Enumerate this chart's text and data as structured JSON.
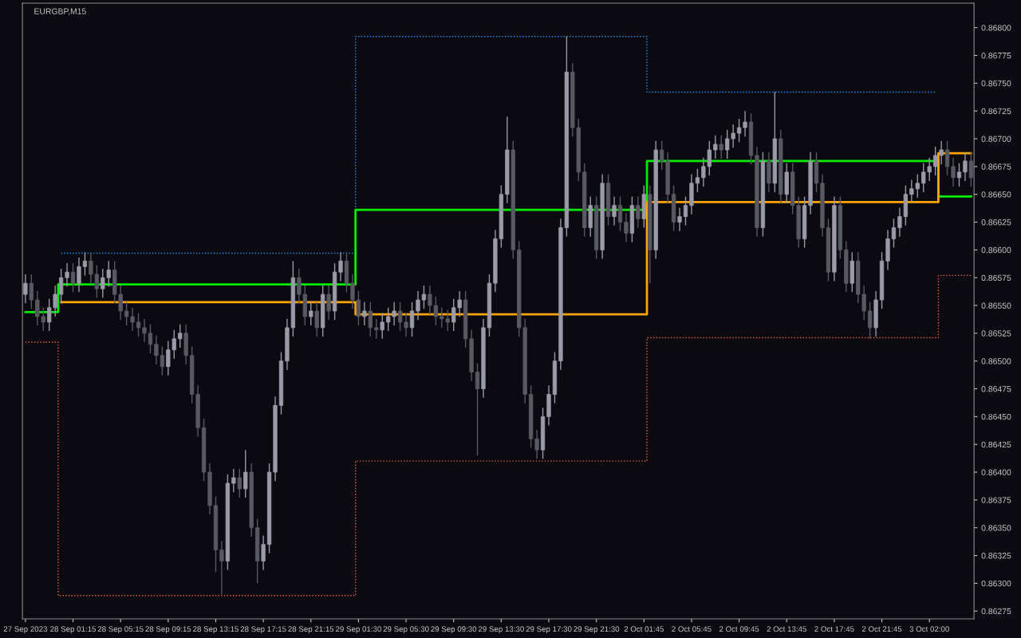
{
  "chart_data": {
    "type": "candlestick",
    "title": "EURGBP,M15",
    "categories": [
      "27 Sep 2023",
      null,
      null,
      null,
      null,
      null,
      null,
      null,
      "28 Sep 01:15",
      null,
      null,
      null,
      null,
      null,
      null,
      null,
      "28 Sep 05:15",
      null,
      null,
      null,
      null,
      null,
      null,
      null,
      "28 Sep 09:15",
      null,
      null,
      null,
      null,
      null,
      null,
      null,
      "28 Sep 13:15",
      null,
      null,
      null,
      null,
      null,
      null,
      null,
      "28 Sep 17:15",
      null,
      null,
      null,
      null,
      null,
      null,
      null,
      "28 Sep 21:15",
      null,
      null,
      null,
      null,
      null,
      null,
      null,
      "29 Sep 01:30",
      null,
      null,
      null,
      null,
      null,
      null,
      null,
      "29 Sep 05:30",
      null,
      null,
      null,
      null,
      null,
      null,
      null,
      "29 Sep 09:30",
      null,
      null,
      null,
      null,
      null,
      null,
      null,
      "29 Sep 13:30",
      null,
      null,
      null,
      null,
      null,
      null,
      null,
      "29 Sep 17:30",
      null,
      null,
      null,
      null,
      null,
      null,
      null,
      "29 Sep 21:30",
      null,
      null,
      null,
      null,
      null,
      null,
      null,
      "2 Oct 01:45",
      null,
      null,
      null,
      null,
      null,
      null,
      null,
      "2 Oct 05:45",
      null,
      null,
      null,
      null,
      null,
      null,
      null,
      "2 Oct 09:45",
      null,
      null,
      null,
      null,
      null,
      null,
      null,
      "2 Oct 13:45",
      null,
      null,
      null,
      null,
      null,
      null,
      null,
      "2 Oct 17:45",
      null,
      null,
      null,
      null,
      null,
      null,
      null,
      "2 Oct 21:45",
      null,
      null,
      null,
      null,
      null,
      null,
      null,
      "3 Oct 02:00",
      null,
      null,
      null,
      null,
      null,
      null,
      null
    ],
    "colors": [
      "#9a9aa8",
      "#595964",
      "#595964",
      "#595964",
      "#9a9aa8",
      "#9a9aa8",
      "#9a9aa8",
      "#9a9aa8",
      "#595964",
      "#9a9aa8",
      "#9a9aa8",
      "#595964",
      "#595964",
      "#9a9aa8",
      "#9a9aa8",
      "#595964",
      "#595964",
      "#595964",
      "#595964",
      "#595964",
      "#595964",
      "#595964",
      "#595964",
      "#595964",
      "#9a9aa8",
      "#9a9aa8",
      "#9a9aa8",
      "#595964",
      "#595964",
      "#595964",
      "#595964",
      "#595964",
      "#595964",
      "#595964",
      "#9a9aa8",
      "#9a9aa8",
      "#595964",
      "#9a9aa8",
      "#595964",
      "#595964",
      "#9a9aa8",
      "#9a9aa8",
      "#9a9aa8",
      "#9a9aa8",
      "#9a9aa8",
      "#9a9aa8",
      "#595964",
      "#595964",
      "#9a9aa8",
      "#595964",
      "#9a9aa8",
      "#595964",
      "#9a9aa8",
      "#9a9aa8",
      "#595964",
      "#595964",
      "#595964",
      "#9a9aa8",
      "#595964",
      "#595964",
      "#9a9aa8",
      "#9a9aa8",
      "#9a9aa8",
      "#595964",
      "#595964",
      "#9a9aa8",
      "#9a9aa8",
      "#9a9aa8",
      "#595964",
      "#595964",
      "#595964",
      "#595964",
      "#9a9aa8",
      "#9a9aa8",
      "#595964",
      "#595964",
      "#595964",
      "#9a9aa8",
      "#9a9aa8",
      "#9a9aa8",
      "#9a9aa8",
      "#9a9aa8",
      "#595964",
      "#595964",
      "#595964",
      "#595964",
      "#595964",
      "#9a9aa8",
      "#9a9aa8",
      "#9a9aa8",
      "#9a9aa8",
      "#9a9aa8",
      "#595964",
      "#595964",
      "#595964",
      "#9a9aa8",
      "#595964",
      "#9a9aa8",
      "#595964",
      "#9a9aa8",
      "#595964",
      "#595964",
      "#9a9aa8",
      "#595964",
      "#9a9aa8",
      "#595964",
      "#9a9aa8",
      "#595964",
      "#595964",
      "#595964",
      "#9a9aa8",
      "#9a9aa8",
      "#9a9aa8",
      "#9a9aa8",
      "#9a9aa8",
      "#9a9aa8",
      "#9a9aa8",
      "#595964",
      "#9a9aa8",
      "#9a9aa8",
      "#9a9aa8",
      "#9a9aa8",
      "#595964",
      "#595964",
      "#9a9aa8",
      "#595964",
      "#9a9aa8",
      "#595964",
      "#9a9aa8",
      "#595964",
      "#595964",
      "#9a9aa8",
      "#9a9aa8",
      "#595964",
      "#595964",
      "#595964",
      "#9a9aa8",
      "#595964",
      "#595964",
      "#9a9aa8",
      "#595964",
      "#595964",
      "#595964",
      "#9a9aa8",
      "#9a9aa8",
      "#9a9aa8",
      "#9a9aa8",
      "#9a9aa8",
      "#9a9aa8",
      "#9a9aa8",
      "#9a9aa8",
      "#9a9aa8",
      "#9a9aa8",
      "#9a9aa8",
      "#9a9aa8",
      "#595964",
      "#595964",
      "#9a9aa8",
      "#9a9aa8",
      "#595964"
    ],
    "ohlc": [
      [
        0.8656,
        0.86578,
        0.86552,
        0.8657
      ],
      [
        0.8657,
        0.86578,
        0.86547,
        0.86555
      ],
      [
        0.86555,
        0.86563,
        0.86532,
        0.8654
      ],
      [
        0.8654,
        0.86548,
        0.86527,
        0.86535
      ],
      [
        0.86535,
        0.86556,
        0.86527,
        0.86548
      ],
      [
        0.86548,
        0.86568,
        0.8654,
        0.8656
      ],
      [
        0.8656,
        0.86583,
        0.86552,
        0.86575
      ],
      [
        0.86575,
        0.86588,
        0.86567,
        0.8658
      ],
      [
        0.8658,
        0.86588,
        0.86562,
        0.8657
      ],
      [
        0.8657,
        0.86593,
        0.86562,
        0.86585
      ],
      [
        0.86585,
        0.86598,
        0.86577,
        0.8659
      ],
      [
        0.8659,
        0.86598,
        0.8657,
        0.86578
      ],
      [
        0.86578,
        0.86586,
        0.86557,
        0.86565
      ],
      [
        0.86565,
        0.86583,
        0.86557,
        0.86575
      ],
      [
        0.86575,
        0.8659,
        0.86567,
        0.86582
      ],
      [
        0.86582,
        0.8659,
        0.86552,
        0.8656
      ],
      [
        0.8656,
        0.86568,
        0.86537,
        0.86545
      ],
      [
        0.86545,
        0.86553,
        0.86532,
        0.8654
      ],
      [
        0.8654,
        0.86548,
        0.86527,
        0.86535
      ],
      [
        0.86535,
        0.86543,
        0.86522,
        0.8653
      ],
      [
        0.8653,
        0.86538,
        0.86517,
        0.86525
      ],
      [
        0.86525,
        0.86533,
        0.86507,
        0.86515
      ],
      [
        0.86515,
        0.86523,
        0.86497,
        0.86505
      ],
      [
        0.86505,
        0.86513,
        0.86487,
        0.86495
      ],
      [
        0.86495,
        0.86518,
        0.86487,
        0.8651
      ],
      [
        0.8651,
        0.86528,
        0.86502,
        0.8652
      ],
      [
        0.8652,
        0.86533,
        0.86512,
        0.86525
      ],
      [
        0.86525,
        0.86533,
        0.86497,
        0.86505
      ],
      [
        0.86505,
        0.86513,
        0.86462,
        0.8647
      ],
      [
        0.8647,
        0.86478,
        0.86432,
        0.8644
      ],
      [
        0.8644,
        0.86448,
        0.86392,
        0.864
      ],
      [
        0.864,
        0.86408,
        0.86362,
        0.8637
      ],
      [
        0.8637,
        0.86378,
        0.8631,
        0.8633
      ],
      [
        0.8633,
        0.86338,
        0.8629,
        0.8632
      ],
      [
        0.8632,
        0.86398,
        0.86312,
        0.8639
      ],
      [
        0.8639,
        0.86403,
        0.86382,
        0.86395
      ],
      [
        0.86395,
        0.86403,
        0.86377,
        0.86385
      ],
      [
        0.86385,
        0.8642,
        0.86377,
        0.864
      ],
      [
        0.864,
        0.86408,
        0.86342,
        0.8635
      ],
      [
        0.8635,
        0.86358,
        0.863,
        0.8632
      ],
      [
        0.8632,
        0.86343,
        0.86312,
        0.86335
      ],
      [
        0.86335,
        0.86408,
        0.86327,
        0.864
      ],
      [
        0.864,
        0.86468,
        0.86392,
        0.8646
      ],
      [
        0.8646,
        0.86508,
        0.86452,
        0.865
      ],
      [
        0.865,
        0.86538,
        0.86492,
        0.8653
      ],
      [
        0.8653,
        0.8659,
        0.86522,
        0.86575
      ],
      [
        0.86575,
        0.86583,
        0.86552,
        0.8656
      ],
      [
        0.8656,
        0.86568,
        0.86532,
        0.8654
      ],
      [
        0.8654,
        0.86553,
        0.86532,
        0.86545
      ],
      [
        0.86545,
        0.86553,
        0.86522,
        0.8653
      ],
      [
        0.8653,
        0.86568,
        0.86522,
        0.8656
      ],
      [
        0.8656,
        0.86568,
        0.86537,
        0.86545
      ],
      [
        0.86545,
        0.86588,
        0.86537,
        0.8658
      ],
      [
        0.8658,
        0.86598,
        0.86572,
        0.8659
      ],
      [
        0.8659,
        0.86598,
        0.86562,
        0.8657
      ],
      [
        0.8657,
        0.86578,
        0.86547,
        0.86555
      ],
      [
        0.86555,
        0.86563,
        0.86532,
        0.8654
      ],
      [
        0.8654,
        0.86553,
        0.86532,
        0.86545
      ],
      [
        0.86545,
        0.86553,
        0.86522,
        0.8653
      ],
      [
        0.8653,
        0.86538,
        0.8652,
        0.86528
      ],
      [
        0.86528,
        0.86543,
        0.8652,
        0.86535
      ],
      [
        0.86535,
        0.86548,
        0.86527,
        0.8654
      ],
      [
        0.8654,
        0.86553,
        0.86532,
        0.86545
      ],
      [
        0.86545,
        0.86553,
        0.86527,
        0.86535
      ],
      [
        0.86535,
        0.86543,
        0.86522,
        0.8653
      ],
      [
        0.8653,
        0.86553,
        0.86522,
        0.86545
      ],
      [
        0.86545,
        0.86563,
        0.86537,
        0.86555
      ],
      [
        0.86555,
        0.86568,
        0.86547,
        0.8656
      ],
      [
        0.8656,
        0.86568,
        0.86542,
        0.8655
      ],
      [
        0.8655,
        0.86558,
        0.86532,
        0.8654
      ],
      [
        0.8654,
        0.86548,
        0.8653,
        0.86538
      ],
      [
        0.86538,
        0.86546,
        0.86527,
        0.86535
      ],
      [
        0.86535,
        0.86556,
        0.86527,
        0.86548
      ],
      [
        0.86548,
        0.86563,
        0.8654,
        0.86555
      ],
      [
        0.86555,
        0.86563,
        0.86512,
        0.8652
      ],
      [
        0.8652,
        0.86528,
        0.86482,
        0.8649
      ],
      [
        0.8649,
        0.86498,
        0.86415,
        0.86475
      ],
      [
        0.86475,
        0.86538,
        0.86467,
        0.8653
      ],
      [
        0.8653,
        0.86578,
        0.86522,
        0.8657
      ],
      [
        0.8657,
        0.86618,
        0.86562,
        0.8661
      ],
      [
        0.8661,
        0.86658,
        0.86602,
        0.8665
      ],
      [
        0.8665,
        0.8672,
        0.86642,
        0.8669
      ],
      [
        0.8669,
        0.86698,
        0.86592,
        0.866
      ],
      [
        0.866,
        0.86608,
        0.86522,
        0.8653
      ],
      [
        0.8653,
        0.86538,
        0.86462,
        0.8647
      ],
      [
        0.8647,
        0.86478,
        0.86422,
        0.8643
      ],
      [
        0.8643,
        0.86438,
        0.86412,
        0.8642
      ],
      [
        0.8642,
        0.86458,
        0.86412,
        0.8645
      ],
      [
        0.8645,
        0.86478,
        0.86442,
        0.8647
      ],
      [
        0.8647,
        0.86508,
        0.86462,
        0.865
      ],
      [
        0.865,
        0.86628,
        0.86492,
        0.8662
      ],
      [
        0.8662,
        0.86792,
        0.86612,
        0.8676
      ],
      [
        0.8676,
        0.86768,
        0.86702,
        0.8671
      ],
      [
        0.8671,
        0.86718,
        0.86662,
        0.8667
      ],
      [
        0.8667,
        0.86678,
        0.86612,
        0.8662
      ],
      [
        0.8662,
        0.86648,
        0.86612,
        0.8664
      ],
      [
        0.8664,
        0.86648,
        0.86592,
        0.866
      ],
      [
        0.866,
        0.86668,
        0.86592,
        0.8666
      ],
      [
        0.8666,
        0.86668,
        0.86622,
        0.8663
      ],
      [
        0.8663,
        0.86648,
        0.86622,
        0.8664
      ],
      [
        0.8664,
        0.86648,
        0.86617,
        0.86625
      ],
      [
        0.86625,
        0.86633,
        0.86607,
        0.86615
      ],
      [
        0.86615,
        0.86648,
        0.86607,
        0.8664
      ],
      [
        0.8664,
        0.86648,
        0.8662,
        0.86628
      ],
      [
        0.86628,
        0.86658,
        0.8662,
        0.8665
      ],
      [
        0.8665,
        0.86658,
        0.8657,
        0.866
      ],
      [
        0.866,
        0.86698,
        0.86592,
        0.8669
      ],
      [
        0.8669,
        0.86698,
        0.86672,
        0.8668
      ],
      [
        0.8668,
        0.86688,
        0.86642,
        0.8665
      ],
      [
        0.8665,
        0.86658,
        0.86617,
        0.86625
      ],
      [
        0.86625,
        0.86638,
        0.86617,
        0.8663
      ],
      [
        0.8663,
        0.86648,
        0.86622,
        0.8664
      ],
      [
        0.8664,
        0.86668,
        0.86632,
        0.8666
      ],
      [
        0.8666,
        0.86673,
        0.86652,
        0.86665
      ],
      [
        0.86665,
        0.86683,
        0.86657,
        0.86675
      ],
      [
        0.86675,
        0.86698,
        0.86667,
        0.8669
      ],
      [
        0.8669,
        0.86703,
        0.86682,
        0.86695
      ],
      [
        0.86695,
        0.86703,
        0.86682,
        0.8669
      ],
      [
        0.8669,
        0.86708,
        0.86682,
        0.867
      ],
      [
        0.867,
        0.86713,
        0.86692,
        0.86705
      ],
      [
        0.86705,
        0.86718,
        0.86697,
        0.8671
      ],
      [
        0.8671,
        0.86725,
        0.86702,
        0.86715
      ],
      [
        0.86715,
        0.86723,
        0.86677,
        0.86685
      ],
      [
        0.86685,
        0.86693,
        0.86612,
        0.8662
      ],
      [
        0.8662,
        0.86688,
        0.86612,
        0.8668
      ],
      [
        0.8668,
        0.86688,
        0.86652,
        0.8666
      ],
      [
        0.8666,
        0.86742,
        0.86652,
        0.867
      ],
      [
        0.867,
        0.86708,
        0.86642,
        0.8665
      ],
      [
        0.8665,
        0.86678,
        0.86642,
        0.8667
      ],
      [
        0.8667,
        0.86678,
        0.86632,
        0.8664
      ],
      [
        0.8664,
        0.86648,
        0.86602,
        0.8661
      ],
      [
        0.8661,
        0.86648,
        0.86602,
        0.8664
      ],
      [
        0.8664,
        0.86688,
        0.86632,
        0.8668
      ],
      [
        0.8668,
        0.86688,
        0.86652,
        0.8666
      ],
      [
        0.8666,
        0.86668,
        0.86612,
        0.8662
      ],
      [
        0.8662,
        0.86628,
        0.86572,
        0.8658
      ],
      [
        0.8658,
        0.86648,
        0.86572,
        0.8664
      ],
      [
        0.8664,
        0.86648,
        0.86592,
        0.866
      ],
      [
        0.866,
        0.86608,
        0.86562,
        0.8657
      ],
      [
        0.8657,
        0.86598,
        0.86562,
        0.8659
      ],
      [
        0.8659,
        0.86598,
        0.86552,
        0.8656
      ],
      [
        0.8656,
        0.86568,
        0.86537,
        0.86545
      ],
      [
        0.86545,
        0.86553,
        0.8652,
        0.8653
      ],
      [
        0.8653,
        0.86563,
        0.86522,
        0.86555
      ],
      [
        0.86555,
        0.86598,
        0.86547,
        0.8659
      ],
      [
        0.8659,
        0.86618,
        0.86582,
        0.8661
      ],
      [
        0.8661,
        0.86628,
        0.86602,
        0.8662
      ],
      [
        0.8662,
        0.86638,
        0.86612,
        0.8663
      ],
      [
        0.8663,
        0.86658,
        0.86622,
        0.8665
      ],
      [
        0.8665,
        0.86663,
        0.86642,
        0.86655
      ],
      [
        0.86655,
        0.86668,
        0.86647,
        0.8666
      ],
      [
        0.8666,
        0.86678,
        0.86652,
        0.8667
      ],
      [
        0.8667,
        0.86683,
        0.86662,
        0.86675
      ],
      [
        0.86675,
        0.86693,
        0.86667,
        0.86685
      ],
      [
        0.86685,
        0.86698,
        0.86677,
        0.8669
      ],
      [
        0.8669,
        0.86698,
        0.86667,
        0.86675
      ],
      [
        0.86675,
        0.86683,
        0.86657,
        0.86665
      ],
      [
        0.86665,
        0.86678,
        0.86657,
        0.8667
      ],
      [
        0.8667,
        0.86688,
        0.86662,
        0.8668
      ],
      [
        0.8668,
        0.86688,
        0.86657,
        0.86665
      ]
    ],
    "series": [
      {
        "type": "step",
        "line_style": "dotted",
        "color": "#1e90ff",
        "values": [
          null,
          null,
          null,
          null,
          null,
          null,
          0.86597,
          0.86597,
          0.86597,
          0.86597,
          0.86597,
          0.86597,
          0.86597,
          0.86597,
          0.86597,
          0.86597,
          0.86597,
          0.86597,
          0.86597,
          0.86597,
          0.86597,
          0.86597,
          0.86597,
          0.86597,
          0.86597,
          0.86597,
          0.86597,
          0.86597,
          0.86597,
          0.86597,
          0.86597,
          0.86597,
          0.86597,
          0.86597,
          0.86597,
          0.86597,
          0.86597,
          0.86597,
          0.86597,
          0.86597,
          0.86597,
          0.86597,
          0.86597,
          0.86597,
          0.86597,
          0.86597,
          0.86597,
          0.86597,
          0.86597,
          0.86597,
          0.86597,
          0.86597,
          0.86597,
          0.86597,
          0.86597,
          0.86597,
          0.86792,
          0.86792,
          0.86792,
          0.86792,
          0.86792,
          0.86792,
          0.86792,
          0.86792,
          0.86792,
          0.86792,
          0.86792,
          0.86792,
          0.86792,
          0.86792,
          0.86792,
          0.86792,
          0.86792,
          0.86792,
          0.86792,
          0.86792,
          0.86792,
          0.86792,
          0.86792,
          0.86792,
          0.86792,
          0.86792,
          0.86792,
          0.86792,
          0.86792,
          0.86792,
          0.86792,
          0.86792,
          0.86792,
          0.86792,
          0.86792,
          0.86792,
          0.86792,
          0.86792,
          0.86792,
          0.86792,
          0.86792,
          0.86792,
          0.86792,
          0.86792,
          0.86792,
          0.86792,
          0.86792,
          0.86792,
          0.86792,
          0.86742,
          0.86742,
          0.86742,
          0.86742,
          0.86742,
          0.86742,
          0.86742,
          0.86742,
          0.86742,
          0.86742,
          0.86742,
          0.86742,
          0.86742,
          0.86742,
          0.86742,
          0.86742,
          0.86742,
          0.86742,
          0.86742,
          0.86742,
          0.86742,
          0.86742,
          0.86742,
          0.86742,
          0.86742,
          0.86742,
          0.86742,
          0.86742,
          0.86742,
          0.86742,
          0.86742,
          0.86742,
          0.86742,
          0.86742,
          0.86742,
          0.86742,
          0.86742,
          0.86742,
          0.86742,
          0.86742,
          0.86742,
          0.86742,
          0.86742,
          0.86742,
          0.86742,
          0.86742,
          0.86742,
          0.86742,
          0.86742,
          null,
          null,
          null,
          null,
          null,
          null
        ]
      },
      {
        "type": "step",
        "line_style": "dotted",
        "color": "#f06048",
        "values": [
          0.86517,
          0.86517,
          0.86517,
          0.86517,
          0.86517,
          0.86517,
          0.86289,
          0.86289,
          0.86289,
          0.86289,
          0.86289,
          0.86289,
          0.86289,
          0.86289,
          0.86289,
          0.86289,
          0.86289,
          0.86289,
          0.86289,
          0.86289,
          0.86289,
          0.86289,
          0.86289,
          0.86289,
          0.86289,
          0.86289,
          0.86289,
          0.86289,
          0.86289,
          0.86289,
          0.86289,
          0.86289,
          0.86289,
          0.86289,
          0.86289,
          0.86289,
          0.86289,
          0.86289,
          0.86289,
          0.86289,
          0.86289,
          0.86289,
          0.86289,
          0.86289,
          0.86289,
          0.86289,
          0.86289,
          0.86289,
          0.86289,
          0.86289,
          0.86289,
          0.86289,
          0.86289,
          0.86289,
          0.86289,
          0.86289,
          0.8641,
          0.8641,
          0.8641,
          0.8641,
          0.8641,
          0.8641,
          0.8641,
          0.8641,
          0.8641,
          0.8641,
          0.8641,
          0.8641,
          0.8641,
          0.8641,
          0.8641,
          0.8641,
          0.8641,
          0.8641,
          0.8641,
          0.8641,
          0.8641,
          0.8641,
          0.8641,
          0.8641,
          0.8641,
          0.8641,
          0.8641,
          0.8641,
          0.8641,
          0.8641,
          0.8641,
          0.8641,
          0.8641,
          0.8641,
          0.8641,
          0.8641,
          0.8641,
          0.8641,
          0.8641,
          0.8641,
          0.8641,
          0.8641,
          0.8641,
          0.8641,
          0.8641,
          0.8641,
          0.8641,
          0.8641,
          0.8641,
          0.86521,
          0.86521,
          0.86521,
          0.86521,
          0.86521,
          0.86521,
          0.86521,
          0.86521,
          0.86521,
          0.86521,
          0.86521,
          0.86521,
          0.86521,
          0.86521,
          0.86521,
          0.86521,
          0.86521,
          0.86521,
          0.86521,
          0.86521,
          0.86521,
          0.86521,
          0.86521,
          0.86521,
          0.86521,
          0.86521,
          0.86521,
          0.86521,
          0.86521,
          0.86521,
          0.86521,
          0.86521,
          0.86521,
          0.86521,
          0.86521,
          0.86521,
          0.86521,
          0.86521,
          0.86521,
          0.86521,
          0.86521,
          0.86521,
          0.86521,
          0.86521,
          0.86521,
          0.86521,
          0.86521,
          0.86521,
          0.86521,
          0.86577,
          0.86577,
          0.86577,
          0.86577,
          0.86577,
          0.86577
        ]
      },
      {
        "type": "step",
        "line_style": "solid",
        "color": "#00ee00",
        "values": [
          0.86544,
          0.86544,
          0.86544,
          0.86544,
          0.86544,
          0.86544,
          0.86569,
          0.86569,
          0.86569,
          0.86569,
          0.86569,
          0.86569,
          0.86569,
          0.86569,
          0.86569,
          0.86569,
          0.86569,
          0.86569,
          0.86569,
          0.86569,
          0.86569,
          0.86569,
          0.86569,
          0.86569,
          0.86569,
          0.86569,
          0.86569,
          0.86569,
          0.86569,
          0.86569,
          0.86569,
          0.86569,
          0.86569,
          0.86569,
          0.86569,
          0.86569,
          0.86569,
          0.86569,
          0.86569,
          0.86569,
          0.86569,
          0.86569,
          0.86569,
          0.86569,
          0.86569,
          0.86569,
          0.86569,
          0.86569,
          0.86569,
          0.86569,
          0.86569,
          0.86569,
          0.86569,
          0.86569,
          0.86569,
          0.86569,
          0.86636,
          0.86636,
          0.86636,
          0.86636,
          0.86636,
          0.86636,
          0.86636,
          0.86636,
          0.86636,
          0.86636,
          0.86636,
          0.86636,
          0.86636,
          0.86636,
          0.86636,
          0.86636,
          0.86636,
          0.86636,
          0.86636,
          0.86636,
          0.86636,
          0.86636,
          0.86636,
          0.86636,
          0.86636,
          0.86636,
          0.86636,
          0.86636,
          0.86636,
          0.86636,
          0.86636,
          0.86636,
          0.86636,
          0.86636,
          0.86636,
          0.86636,
          0.86636,
          0.86636,
          0.86636,
          0.86636,
          0.86636,
          0.86636,
          0.86636,
          0.86636,
          0.86636,
          0.86636,
          0.86636,
          0.86636,
          0.86636,
          0.8668,
          0.8668,
          0.8668,
          0.8668,
          0.8668,
          0.8668,
          0.8668,
          0.8668,
          0.8668,
          0.8668,
          0.8668,
          0.8668,
          0.8668,
          0.8668,
          0.8668,
          0.8668,
          0.8668,
          0.8668,
          0.8668,
          0.8668,
          0.8668,
          0.8668,
          0.8668,
          0.8668,
          0.8668,
          0.8668,
          0.8668,
          0.8668,
          0.8668,
          0.8668,
          0.8668,
          0.8668,
          0.8668,
          0.8668,
          0.8668,
          0.8668,
          0.8668,
          0.8668,
          0.8668,
          0.8668,
          0.8668,
          0.8668,
          0.8668,
          0.8668,
          0.8668,
          0.8668,
          0.8668,
          0.8668,
          0.8668,
          0.86648,
          0.86648,
          0.86648,
          0.86648,
          0.86648,
          0.86648
        ]
      },
      {
        "type": "step",
        "line_style": "solid",
        "color": "#ffa500",
        "values": [
          null,
          null,
          null,
          null,
          null,
          null,
          0.86553,
          0.86553,
          0.86553,
          0.86553,
          0.86553,
          0.86553,
          0.86553,
          0.86553,
          0.86553,
          0.86553,
          0.86553,
          0.86553,
          0.86553,
          0.86553,
          0.86553,
          0.86553,
          0.86553,
          0.86553,
          0.86553,
          0.86553,
          0.86553,
          0.86553,
          0.86553,
          0.86553,
          0.86553,
          0.86553,
          0.86553,
          0.86553,
          0.86553,
          0.86553,
          0.86553,
          0.86553,
          0.86553,
          0.86553,
          0.86553,
          0.86553,
          0.86553,
          0.86553,
          0.86553,
          0.86553,
          0.86553,
          0.86553,
          0.86553,
          0.86553,
          0.86553,
          0.86553,
          0.86553,
          0.86553,
          0.86553,
          0.86553,
          0.86542,
          0.86542,
          0.86542,
          0.86542,
          0.86542,
          0.86542,
          0.86542,
          0.86542,
          0.86542,
          0.86542,
          0.86542,
          0.86542,
          0.86542,
          0.86542,
          0.86542,
          0.86542,
          0.86542,
          0.86542,
          0.86542,
          0.86542,
          0.86542,
          0.86542,
          0.86542,
          0.86542,
          0.86542,
          0.86542,
          0.86542,
          0.86542,
          0.86542,
          0.86542,
          0.86542,
          0.86542,
          0.86542,
          0.86542,
          0.86542,
          0.86542,
          0.86542,
          0.86542,
          0.86542,
          0.86542,
          0.86542,
          0.86542,
          0.86542,
          0.86542,
          0.86542,
          0.86542,
          0.86542,
          0.86542,
          0.86542,
          0.86643,
          0.86643,
          0.86643,
          0.86643,
          0.86643,
          0.86643,
          0.86643,
          0.86643,
          0.86643,
          0.86643,
          0.86643,
          0.86643,
          0.86643,
          0.86643,
          0.86643,
          0.86643,
          0.86643,
          0.86643,
          0.86643,
          0.86643,
          0.86643,
          0.86643,
          0.86643,
          0.86643,
          0.86643,
          0.86643,
          0.86643,
          0.86643,
          0.86643,
          0.86643,
          0.86643,
          0.86643,
          0.86643,
          0.86643,
          0.86643,
          0.86643,
          0.86643,
          0.86643,
          0.86643,
          0.86643,
          0.86643,
          0.86643,
          0.86643,
          0.86643,
          0.86643,
          0.86643,
          0.86643,
          0.86643,
          0.86643,
          0.86687,
          0.86687,
          0.86687,
          0.86687,
          0.86687,
          0.86687
        ]
      }
    ],
    "ylim": [
      0.86268,
      0.86822
    ],
    "yticks": [
      {
        "value": 0.86275,
        "label": "0.86275"
      },
      {
        "value": 0.863,
        "label": "0.86300"
      },
      {
        "value": 0.86325,
        "label": "0.86325"
      },
      {
        "value": 0.8635,
        "label": "0.86350"
      },
      {
        "value": 0.86375,
        "label": "0.86375"
      },
      {
        "value": 0.864,
        "label": "0.86400"
      },
      {
        "value": 0.86425,
        "label": "0.86425"
      },
      {
        "value": 0.8645,
        "label": "0.86450"
      },
      {
        "value": 0.86475,
        "label": "0.86475"
      },
      {
        "value": 0.865,
        "label": "0.86500"
      },
      {
        "value": 0.86525,
        "label": "0.86525"
      },
      {
        "value": 0.8655,
        "label": "0.86550"
      },
      {
        "value": 0.86575,
        "label": "0.86575"
      },
      {
        "value": 0.866,
        "label": "0.86600"
      },
      {
        "value": 0.86625,
        "label": "0.86625"
      },
      {
        "value": 0.8665,
        "label": "0.86650"
      },
      {
        "value": 0.86675,
        "label": "0.86675"
      },
      {
        "value": 0.867,
        "label": "0.86700"
      },
      {
        "value": 0.86725,
        "label": "0.86725"
      },
      {
        "value": 0.8675,
        "label": "0.86750"
      },
      {
        "value": 0.86775,
        "label": "0.86775"
      },
      {
        "value": 0.868,
        "label": "0.86800"
      }
    ],
    "grid": false,
    "legend": false
  }
}
